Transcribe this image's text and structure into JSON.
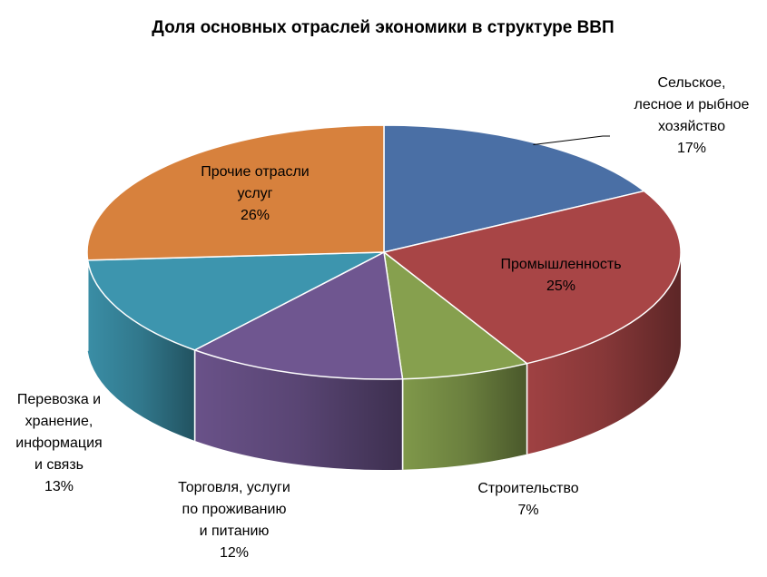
{
  "chart_data": {
    "type": "pie",
    "style": "3d",
    "title": "Доля основных отраслей экономики в структуре ВВП",
    "legend": "none",
    "slices": [
      {
        "label": [
          "Сельское,",
          "лесное и рыбное",
          "хозяйство"
        ],
        "value": 17,
        "value_label": "17%",
        "color": "#4a6fa5"
      },
      {
        "label": [
          "Промышленность"
        ],
        "value": 25,
        "value_label": "25%",
        "color": "#a84546"
      },
      {
        "label": [
          "Строительство"
        ],
        "value": 7,
        "value_label": "7%",
        "color": "#86a04e"
      },
      {
        "label": [
          "Торговля, услуги",
          "по проживанию",
          "и питанию"
        ],
        "value": 12,
        "value_label": "12%",
        "color": "#6f5690"
      },
      {
        "label": [
          "Перевозка и",
          "хранение,",
          "информация",
          "и связь"
        ],
        "value": 13,
        "value_label": "13%",
        "color": "#3d95ae"
      },
      {
        "label": [
          "Прочие отрасли",
          "услуг"
        ],
        "value": 26,
        "value_label": "26%",
        "color": "#d7813d"
      }
    ]
  }
}
